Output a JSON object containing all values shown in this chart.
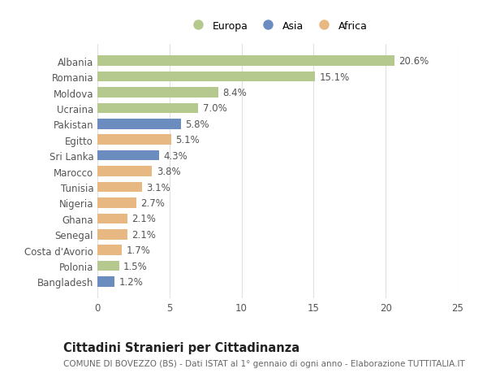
{
  "categories": [
    "Albania",
    "Romania",
    "Moldova",
    "Ucraina",
    "Pakistan",
    "Egitto",
    "Sri Lanka",
    "Marocco",
    "Tunisia",
    "Nigeria",
    "Ghana",
    "Senegal",
    "Costa d'Avorio",
    "Polonia",
    "Bangladesh"
  ],
  "values": [
    20.6,
    15.1,
    8.4,
    7.0,
    5.8,
    5.1,
    4.3,
    3.8,
    3.1,
    2.7,
    2.1,
    2.1,
    1.7,
    1.5,
    1.2
  ],
  "continents": [
    "Europa",
    "Europa",
    "Europa",
    "Europa",
    "Asia",
    "Africa",
    "Asia",
    "Africa",
    "Africa",
    "Africa",
    "Africa",
    "Africa",
    "Africa",
    "Europa",
    "Asia"
  ],
  "colors": {
    "Europa": "#b5c98e",
    "Asia": "#6b8cbf",
    "Africa": "#e8b882"
  },
  "xlim": [
    0,
    25
  ],
  "xticks": [
    0,
    5,
    10,
    15,
    20,
    25
  ],
  "title": "Cittadini Stranieri per Cittadinanza",
  "subtitle": "COMUNE DI BOVEZZO (BS) - Dati ISTAT al 1° gennaio di ogni anno - Elaborazione TUTTITALIA.IT",
  "background_color": "#ffffff",
  "grid_color": "#e0e0e0",
  "bar_height": 0.65,
  "label_fontsize": 8.5,
  "ytick_fontsize": 8.5,
  "xtick_fontsize": 8.5,
  "title_fontsize": 10.5,
  "subtitle_fontsize": 7.5,
  "legend_fontsize": 9,
  "legend_marker_size": 10
}
